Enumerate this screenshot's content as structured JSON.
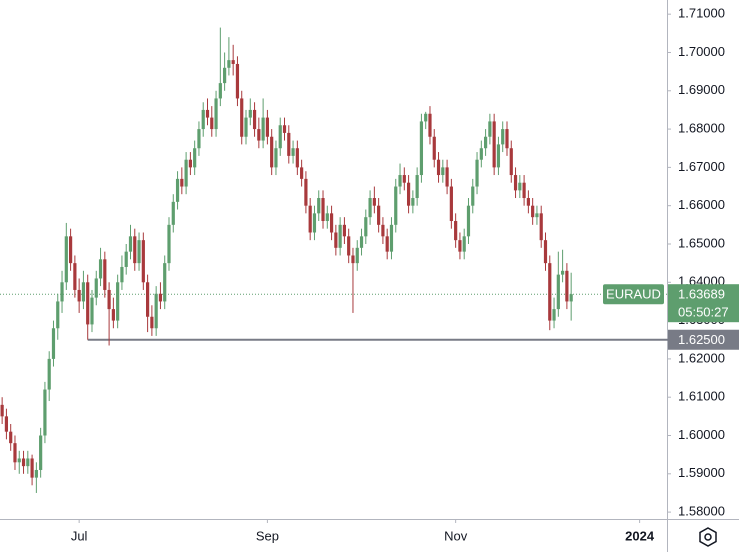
{
  "chart_data": {
    "type": "candlestick",
    "symbol": "EURAUD",
    "up_color": "#5e9e6e",
    "down_color": "#a8393c",
    "xlim": [
      -0.5,
      155.4
    ],
    "xticks": [
      {
        "value": 18,
        "label": "Jul"
      },
      {
        "value": 62,
        "label": "Sep"
      },
      {
        "value": 106,
        "label": "Nov"
      },
      {
        "value": 149,
        "label": "2024"
      }
    ],
    "ylim": [
      1.5782,
      1.7137
    ],
    "yticks": [
      {
        "value": 1.71,
        "label": "1.71000"
      },
      {
        "value": 1.7,
        "label": "1.70000"
      },
      {
        "value": 1.69,
        "label": "1.69000"
      },
      {
        "value": 1.68,
        "label": "1.68000"
      },
      {
        "value": 1.67,
        "label": "1.67000"
      },
      {
        "value": 1.66,
        "label": "1.66000"
      },
      {
        "value": 1.65,
        "label": "1.65000"
      },
      {
        "value": 1.64,
        "label": "1.64000"
      },
      {
        "value": 1.63,
        "label": "1.63000"
      },
      {
        "value": 1.62,
        "label": "1.62000"
      },
      {
        "value": 1.61,
        "label": "1.61000"
      },
      {
        "value": 1.6,
        "label": "1.60000"
      },
      {
        "value": 1.59,
        "label": "1.59000"
      },
      {
        "value": 1.58,
        "label": "1.58000"
      }
    ],
    "last_price": {
      "value": 1.63689,
      "label": "1.63689"
    },
    "countdown": "05:50:27",
    "level": {
      "value": 1.625,
      "label": "1.62500",
      "from_index": 20
    },
    "candles": [
      [
        1.608,
        1.61,
        1.603,
        1.605
      ],
      [
        1.605,
        1.607,
        1.599,
        1.601
      ],
      [
        1.601,
        1.603,
        1.596,
        1.598
      ],
      [
        1.598,
        1.6,
        1.591,
        1.593
      ],
      [
        1.593,
        1.596,
        1.59,
        1.594
      ],
      [
        1.594,
        1.596,
        1.59,
        1.592
      ],
      [
        1.592,
        1.596,
        1.59,
        1.594
      ],
      [
        1.594,
        1.595,
        1.587,
        1.589
      ],
      [
        1.589,
        1.593,
        1.585,
        1.591
      ],
      [
        1.591,
        1.602,
        1.589,
        1.6
      ],
      [
        1.6,
        1.614,
        1.598,
        1.612
      ],
      [
        1.612,
        1.622,
        1.609,
        1.62
      ],
      [
        1.62,
        1.63,
        1.618,
        1.628
      ],
      [
        1.628,
        1.637,
        1.625,
        1.635
      ],
      [
        1.635,
        1.643,
        1.632,
        1.64
      ],
      [
        1.64,
        1.6555,
        1.638,
        1.652
      ],
      [
        1.652,
        1.654,
        1.643,
        1.645
      ],
      [
        1.645,
        1.647,
        1.636,
        1.638
      ],
      [
        1.638,
        1.641,
        1.632,
        1.635
      ],
      [
        1.635,
        1.643,
        1.633,
        1.64
      ],
      [
        1.64,
        1.642,
        1.625,
        1.629
      ],
      [
        1.629,
        1.638,
        1.627,
        1.636
      ],
      [
        1.636,
        1.643,
        1.634,
        1.641
      ],
      [
        1.641,
        1.649,
        1.639,
        1.646
      ],
      [
        1.646,
        1.648,
        1.636,
        1.638
      ],
      [
        1.638,
        1.64,
        1.6235,
        1.633
      ],
      [
        1.633,
        1.636,
        1.628,
        1.63
      ],
      [
        1.63,
        1.642,
        1.628,
        1.64
      ],
      [
        1.64,
        1.647,
        1.638,
        1.644
      ],
      [
        1.644,
        1.65,
        1.642,
        1.648
      ],
      [
        1.648,
        1.655,
        1.646,
        1.652
      ],
      [
        1.652,
        1.654,
        1.643,
        1.645
      ],
      [
        1.645,
        1.653,
        1.643,
        1.651
      ],
      [
        1.651,
        1.653,
        1.638,
        1.64
      ],
      [
        1.64,
        1.642,
        1.627,
        1.631
      ],
      [
        1.631,
        1.634,
        1.626,
        1.628
      ],
      [
        1.628,
        1.639,
        1.626,
        1.637
      ],
      [
        1.637,
        1.64,
        1.633,
        1.635
      ],
      [
        1.635,
        1.647,
        1.633,
        1.645
      ],
      [
        1.645,
        1.657,
        1.643,
        1.655
      ],
      [
        1.655,
        1.663,
        1.653,
        1.661
      ],
      [
        1.661,
        1.669,
        1.659,
        1.667
      ],
      [
        1.667,
        1.67,
        1.663,
        1.665
      ],
      [
        1.665,
        1.674,
        1.663,
        1.672
      ],
      [
        1.672,
        1.674,
        1.668,
        1.67
      ],
      [
        1.67,
        1.677,
        1.668,
        1.675
      ],
      [
        1.675,
        1.682,
        1.673,
        1.68
      ],
      [
        1.68,
        1.687,
        1.678,
        1.685
      ],
      [
        1.685,
        1.688,
        1.681,
        1.683
      ],
      [
        1.683,
        1.686,
        1.678,
        1.68
      ],
      [
        1.68,
        1.69,
        1.678,
        1.688
      ],
      [
        1.688,
        1.7065,
        1.686,
        1.692
      ],
      [
        1.692,
        1.7,
        1.69,
        1.696
      ],
      [
        1.696,
        1.704,
        1.694,
        1.698
      ],
      [
        1.698,
        1.702,
        1.694,
        1.697
      ],
      [
        1.697,
        1.699,
        1.686,
        1.688
      ],
      [
        1.688,
        1.69,
        1.676,
        1.678
      ],
      [
        1.678,
        1.685,
        1.676,
        1.683
      ],
      [
        1.683,
        1.688,
        1.681,
        1.685
      ],
      [
        1.685,
        1.687,
        1.678,
        1.68
      ],
      [
        1.68,
        1.683,
        1.675,
        1.677
      ],
      [
        1.677,
        1.688,
        1.675,
        1.683
      ],
      [
        1.683,
        1.685,
        1.676,
        1.678
      ],
      [
        1.678,
        1.68,
        1.668,
        1.67
      ],
      [
        1.67,
        1.677,
        1.668,
        1.675
      ],
      [
        1.675,
        1.683,
        1.673,
        1.681
      ],
      [
        1.681,
        1.683,
        1.677,
        1.679
      ],
      [
        1.679,
        1.681,
        1.671,
        1.673
      ],
      [
        1.673,
        1.677,
        1.671,
        1.675
      ],
      [
        1.675,
        1.677,
        1.668,
        1.67
      ],
      [
        1.67,
        1.672,
        1.665,
        1.667
      ],
      [
        1.667,
        1.669,
        1.658,
        1.66
      ],
      [
        1.66,
        1.662,
        1.651,
        1.653
      ],
      [
        1.653,
        1.66,
        1.651,
        1.658
      ],
      [
        1.658,
        1.664,
        1.656,
        1.662
      ],
      [
        1.662,
        1.664,
        1.654,
        1.656
      ],
      [
        1.656,
        1.66,
        1.654,
        1.658
      ],
      [
        1.658,
        1.66,
        1.651,
        1.653
      ],
      [
        1.653,
        1.655,
        1.647,
        1.649
      ],
      [
        1.649,
        1.657,
        1.647,
        1.655
      ],
      [
        1.655,
        1.657,
        1.65,
        1.652
      ],
      [
        1.652,
        1.654,
        1.645,
        1.647
      ],
      [
        1.647,
        1.649,
        1.632,
        1.645
      ],
      [
        1.645,
        1.651,
        1.643,
        1.649
      ],
      [
        1.649,
        1.654,
        1.647,
        1.652
      ],
      [
        1.652,
        1.659,
        1.65,
        1.657
      ],
      [
        1.657,
        1.664,
        1.655,
        1.662
      ],
      [
        1.662,
        1.665,
        1.658,
        1.66
      ],
      [
        1.66,
        1.662,
        1.653,
        1.655
      ],
      [
        1.655,
        1.657,
        1.65,
        1.652
      ],
      [
        1.652,
        1.654,
        1.646,
        1.648
      ],
      [
        1.648,
        1.657,
        1.646,
        1.655
      ],
      [
        1.655,
        1.667,
        1.653,
        1.665
      ],
      [
        1.665,
        1.671,
        1.663,
        1.668
      ],
      [
        1.668,
        1.67,
        1.664,
        1.666
      ],
      [
        1.666,
        1.668,
        1.658,
        1.66
      ],
      [
        1.66,
        1.664,
        1.658,
        1.662
      ],
      [
        1.662,
        1.67,
        1.66,
        1.668
      ],
      [
        1.668,
        1.684,
        1.666,
        1.682
      ],
      [
        1.682,
        1.6845,
        1.68,
        1.684
      ],
      [
        1.684,
        1.686,
        1.676,
        1.678
      ],
      [
        1.678,
        1.68,
        1.67,
        1.672
      ],
      [
        1.672,
        1.674,
        1.666,
        1.668
      ],
      [
        1.668,
        1.672,
        1.666,
        1.67
      ],
      [
        1.67,
        1.672,
        1.663,
        1.665
      ],
      [
        1.665,
        1.667,
        1.654,
        1.656
      ],
      [
        1.656,
        1.658,
        1.649,
        1.651
      ],
      [
        1.651,
        1.653,
        1.646,
        1.648
      ],
      [
        1.648,
        1.654,
        1.646,
        1.652
      ],
      [
        1.652,
        1.662,
        1.65,
        1.66
      ],
      [
        1.66,
        1.667,
        1.658,
        1.665
      ],
      [
        1.665,
        1.674,
        1.663,
        1.672
      ],
      [
        1.672,
        1.677,
        1.67,
        1.675
      ],
      [
        1.675,
        1.68,
        1.673,
        1.678
      ],
      [
        1.678,
        1.684,
        1.676,
        1.682
      ],
      [
        1.682,
        1.684,
        1.668,
        1.67
      ],
      [
        1.67,
        1.678,
        1.668,
        1.676
      ],
      [
        1.676,
        1.682,
        1.674,
        1.68
      ],
      [
        1.68,
        1.682,
        1.673,
        1.675
      ],
      [
        1.675,
        1.677,
        1.666,
        1.668
      ],
      [
        1.668,
        1.67,
        1.662,
        1.664
      ],
      [
        1.664,
        1.668,
        1.662,
        1.666
      ],
      [
        1.666,
        1.668,
        1.66,
        1.662
      ],
      [
        1.662,
        1.664,
        1.658,
        1.66
      ],
      [
        1.66,
        1.662,
        1.655,
        1.657
      ],
      [
        1.657,
        1.66,
        1.655,
        1.658
      ],
      [
        1.658,
        1.66,
        1.649,
        1.651
      ],
      [
        1.651,
        1.653,
        1.643,
        1.645
      ],
      [
        1.645,
        1.647,
        1.6275,
        1.63
      ],
      [
        1.63,
        1.636,
        1.628,
        1.633
      ],
      [
        1.633,
        1.648,
        1.631,
        1.642
      ],
      [
        1.642,
        1.6485,
        1.64,
        1.643
      ],
      [
        1.643,
        1.645,
        1.633,
        1.635
      ],
      [
        1.635,
        1.6425,
        1.63,
        1.63689
      ]
    ]
  }
}
